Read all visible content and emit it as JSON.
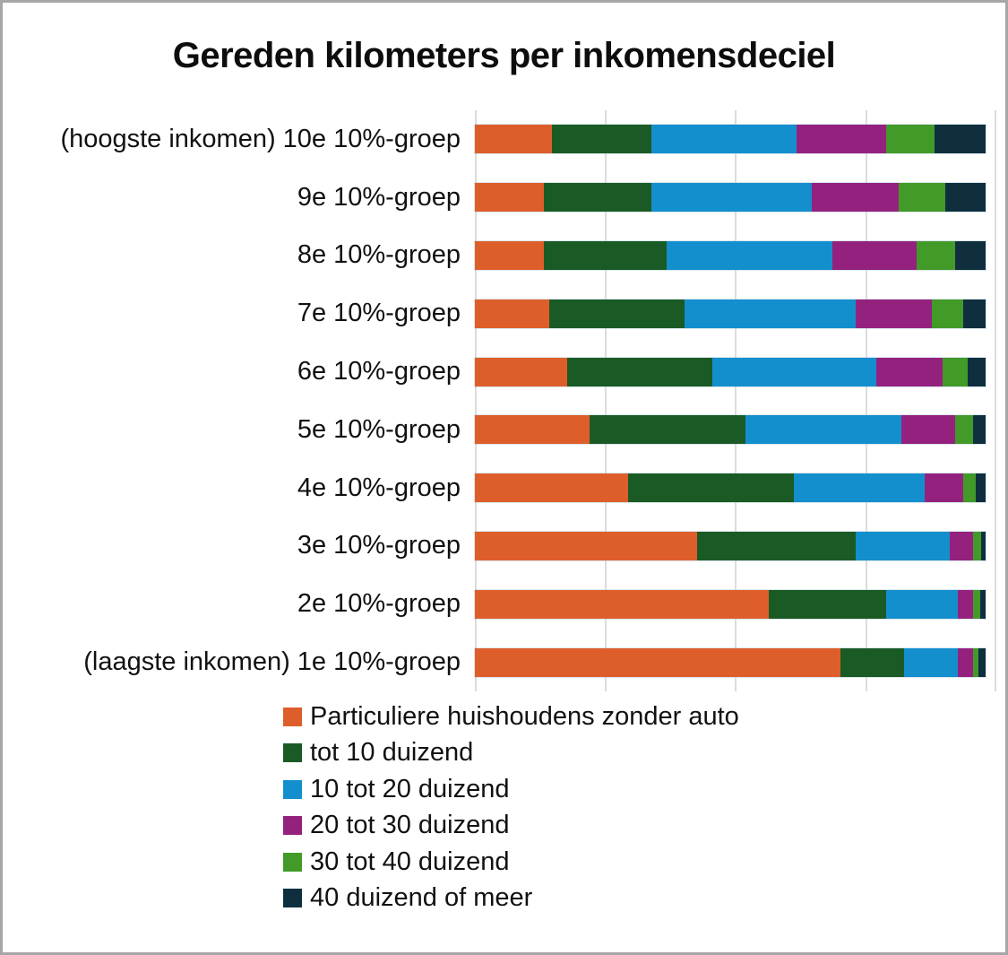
{
  "title": "Gereden kilometers per inkomensdeciel",
  "chart_data": {
    "type": "bar",
    "orientation": "horizontal",
    "stacked": true,
    "values_are": "percent share of driven kilometers per decile",
    "title": "Gereden kilometers per inkomensdeciel",
    "xlabel": "",
    "ylabel": "",
    "x_axis": {
      "min": 0,
      "max": 100,
      "gridlines_pct": [
        0,
        25,
        50,
        75,
        100
      ],
      "tick_labels_visible": false
    },
    "grid": true,
    "legend_position": "bottom-left",
    "categories": [
      "(hoogste inkomen) 10e 10%-groep",
      "9e 10%-groep",
      "8e 10%-groep",
      "7e 10%-groep",
      "6e 10%-groep",
      "5e 10%-groep",
      "4e 10%-groep",
      "3e 10%-groep",
      "2e 10%-groep",
      "(laagste inkomen) 1e 10%-groep"
    ],
    "series": [
      {
        "name": "Particuliere huishoudens zonder auto",
        "color": "#DE5E2B",
        "values": [
          15,
          13.5,
          13.5,
          14.5,
          18,
          22.5,
          30,
          43.5,
          57.5,
          71.5
        ]
      },
      {
        "name": "tot 10 duizend",
        "color": "#1A5B25",
        "values": [
          19.5,
          21,
          24,
          26.5,
          28.5,
          30.5,
          32.5,
          31,
          23,
          12.5
        ]
      },
      {
        "name": "10 tot 20 duizend",
        "color": "#148FCE",
        "values": [
          28.5,
          31.5,
          32.5,
          33.5,
          32,
          30.5,
          25.5,
          18.5,
          14,
          10.5
        ]
      },
      {
        "name": "20 tot 30 duizend",
        "color": "#95217F",
        "values": [
          17.5,
          17,
          16.5,
          15,
          13,
          10.5,
          7.5,
          4.5,
          3,
          3
        ]
      },
      {
        "name": "30 tot 40 duizend",
        "color": "#429A29",
        "values": [
          9.5,
          9,
          7.5,
          6,
          5,
          3.5,
          2.5,
          1.5,
          1.3,
          1
        ]
      },
      {
        "name": "40 duizend of meer",
        "color": "#0F2F3F",
        "values": [
          10,
          8,
          6,
          4.5,
          3.5,
          2.5,
          2,
          1,
          1.2,
          1.5
        ]
      }
    ]
  }
}
